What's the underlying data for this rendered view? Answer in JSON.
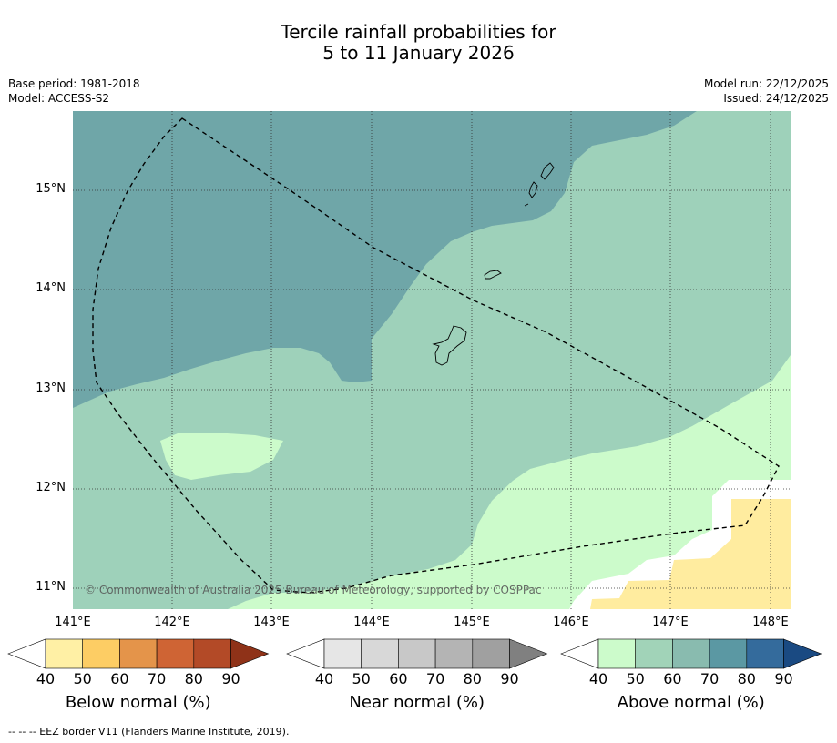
{
  "title_line1": "Tercile rainfall probabilities for",
  "title_line2": "5 to 11 January 2026",
  "base_period": "Base period: 1981-2018",
  "model": "Model: ACCESS-S2",
  "model_run": "Model run: 22/12/2025",
  "issued": "Issued: 24/12/2025",
  "copyright": "© Commonwealth of Australia 2025 Bureau of Meteorology, supported by COSPPac",
  "footnote": "--  --  -- EEZ border V11 (Flanders Marine Institute, 2019).",
  "lat_labels": [
    "15°N",
    "14°N",
    "13°N",
    "12°N",
    "11°N"
  ],
  "lon_labels": [
    "141°E",
    "142°E",
    "143°E",
    "144°E",
    "145°E",
    "146°E",
    "147°E",
    "148°E"
  ],
  "colorbars": [
    {
      "title": "Below normal (%)",
      "ticks": [
        "40",
        "50",
        "60",
        "70",
        "80",
        "90"
      ],
      "colors": [
        "#fff0a5",
        "#fdcd64",
        "#e4944a",
        "#cf6434",
        "#b34a27",
        "#8f3218"
      ]
    },
    {
      "title": "Near normal (%)",
      "ticks": [
        "40",
        "50",
        "60",
        "70",
        "80",
        "90"
      ],
      "colors": [
        "#e6e6e6",
        "#d8d8d8",
        "#c8c8c8",
        "#b4b4b4",
        "#a0a0a0",
        "#808080"
      ]
    },
    {
      "title": "Above normal (%)",
      "ticks": [
        "40",
        "50",
        "60",
        "70",
        "80",
        "90"
      ],
      "colors": [
        "#ccfbcb",
        "#a1d3b8",
        "#89bbaf",
        "#5b98a3",
        "#346b9c",
        "#1a4a82"
      ]
    }
  ],
  "map_colors": {
    "above_40": "#ccfbcb",
    "above_50": "#9ed1ba",
    "above_60": "#6fa6a8",
    "below_40": "#ffec9f"
  }
}
